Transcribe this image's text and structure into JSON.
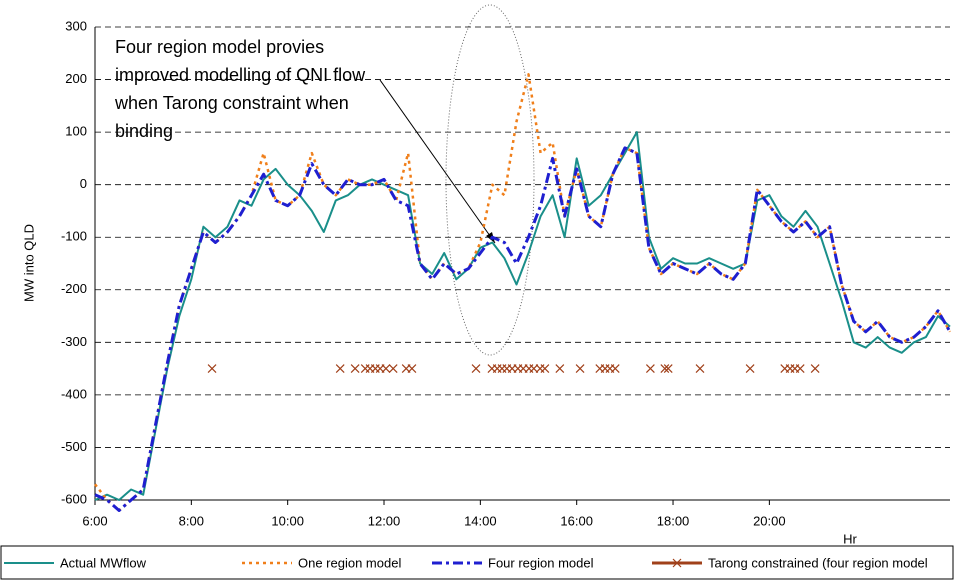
{
  "chart_data": {
    "type": "line",
    "y_label": "MW into QLD",
    "x_label": "Hr",
    "annotation": [
      "Four region model provies",
      "improved modelling of QNI flow",
      "when Tarong constraint when",
      "binding"
    ],
    "xlim": [
      6,
      23.75
    ],
    "ylim": [
      -600,
      300
    ],
    "yticks": [
      -600,
      -500,
      -400,
      -300,
      -200,
      -100,
      0,
      100,
      200,
      300
    ],
    "xticks": [
      {
        "value": 6,
        "label": "6:00"
      },
      {
        "value": 8,
        "label": "8:00"
      },
      {
        "value": 10,
        "label": "10:00"
      },
      {
        "value": 12,
        "label": "12:00"
      },
      {
        "value": 14,
        "label": "14:00"
      },
      {
        "value": 16,
        "label": "16:00"
      },
      {
        "value": 18,
        "label": "18:00"
      },
      {
        "value": 20,
        "label": "20:00"
      }
    ],
    "grid": true,
    "x": [
      6,
      6.25,
      6.5,
      6.75,
      7,
      7.25,
      7.5,
      7.75,
      8,
      8.25,
      8.5,
      8.75,
      9,
      9.25,
      9.5,
      9.75,
      10,
      10.25,
      10.5,
      10.75,
      11,
      11.25,
      11.5,
      11.75,
      12,
      12.25,
      12.5,
      12.75,
      13,
      13.25,
      13.5,
      13.75,
      14,
      14.25,
      14.5,
      14.75,
      15,
      15.25,
      15.5,
      15.75,
      16,
      16.25,
      16.5,
      16.75,
      17,
      17.25,
      17.5,
      17.75,
      18,
      18.25,
      18.5,
      18.75,
      19,
      19.25,
      19.5,
      19.75,
      20,
      20.25,
      20.5,
      20.75,
      21,
      21.25,
      21.5,
      21.75,
      22,
      22.25,
      22.5,
      22.75,
      23,
      23.25,
      23.5,
      23.75
    ],
    "series": [
      {
        "name": "Actual MWflow",
        "color": "#1a8f8a",
        "style": "solid",
        "values": [
          -600,
          -590,
          -600,
          -580,
          -590,
          -470,
          -350,
          -250,
          -180,
          -80,
          -100,
          -80,
          -30,
          -40,
          10,
          30,
          0,
          -20,
          -50,
          -90,
          -30,
          -20,
          0,
          10,
          0,
          -10,
          -20,
          -150,
          -170,
          -130,
          -180,
          -160,
          -120,
          -110,
          -140,
          -190,
          -130,
          -60,
          -20,
          -100,
          50,
          -40,
          -20,
          20,
          60,
          100,
          -100,
          -160,
          -140,
          -150,
          -150,
          -140,
          -150,
          -160,
          -150,
          -30,
          -20,
          -60,
          -80,
          -50,
          -80,
          -150,
          -220,
          -300,
          -310,
          -290,
          -310,
          -320,
          -300,
          -290,
          -250,
          -270
        ]
      },
      {
        "name": "One region model",
        "color": "#f07f1a",
        "style": "dot",
        "values": [
          -570,
          -600,
          -620,
          -600,
          -580,
          -460,
          -340,
          -230,
          -160,
          -90,
          -110,
          -90,
          -60,
          -20,
          60,
          -30,
          -40,
          -20,
          60,
          0,
          -20,
          10,
          0,
          0,
          10,
          -30,
          60,
          -150,
          -180,
          -150,
          -170,
          -160,
          -110,
          0,
          -20,
          120,
          210,
          60,
          80,
          -60,
          30,
          -60,
          -80,
          20,
          70,
          60,
          -120,
          -170,
          -150,
          -160,
          -170,
          -150,
          -170,
          -180,
          -150,
          -10,
          -40,
          -70,
          -90,
          -70,
          -100,
          -80,
          -190,
          -260,
          -280,
          -260,
          -290,
          -300,
          -290,
          -270,
          -240,
          -280
        ]
      },
      {
        "name": "Four region model",
        "color": "#1f1fd0",
        "style": "dashdot",
        "values": [
          -590,
          -600,
          -620,
          -600,
          -580,
          -460,
          -340,
          -230,
          -160,
          -90,
          -110,
          -90,
          -60,
          -20,
          20,
          -30,
          -40,
          -20,
          40,
          0,
          -20,
          10,
          0,
          0,
          10,
          -30,
          -40,
          -150,
          -180,
          -150,
          -170,
          -160,
          -130,
          -100,
          -110,
          -150,
          -100,
          -40,
          50,
          -60,
          30,
          -60,
          -80,
          20,
          70,
          60,
          -120,
          -170,
          -150,
          -160,
          -170,
          -150,
          -170,
          -180,
          -150,
          -10,
          -40,
          -70,
          -90,
          -70,
          -100,
          -80,
          -190,
          -260,
          -280,
          -260,
          -290,
          -300,
          -290,
          -270,
          -240,
          -280
        ]
      },
      {
        "name": "Tarong constrained (four region model",
        "color": "#a0401a",
        "style": "marker",
        "x": [
          8.43,
          11.09,
          11.4,
          11.61,
          11.71,
          11.82,
          11.92,
          12.04,
          12.19,
          12.46,
          12.58,
          13.91,
          14.24,
          14.35,
          14.45,
          14.55,
          14.66,
          14.78,
          14.89,
          15.01,
          15.11,
          15.24,
          15.34,
          15.65,
          16.07,
          16.48,
          16.59,
          16.69,
          16.8,
          17.53,
          17.83,
          17.9,
          18.56,
          19.6,
          20.32,
          20.43,
          20.53,
          20.64,
          20.95
        ],
        "values": [
          -350,
          -350,
          -350,
          -350,
          -350,
          -350,
          -350,
          -350,
          -350,
          -350,
          -350,
          -350,
          -350,
          -350,
          -350,
          -350,
          -350,
          -350,
          -350,
          -350,
          -350,
          -350,
          -350,
          -350,
          -350,
          -350,
          -350,
          -350,
          -350,
          -350,
          -350,
          -350,
          -350,
          -350,
          -350,
          -350,
          -350,
          -350,
          -350
        ]
      }
    ]
  }
}
